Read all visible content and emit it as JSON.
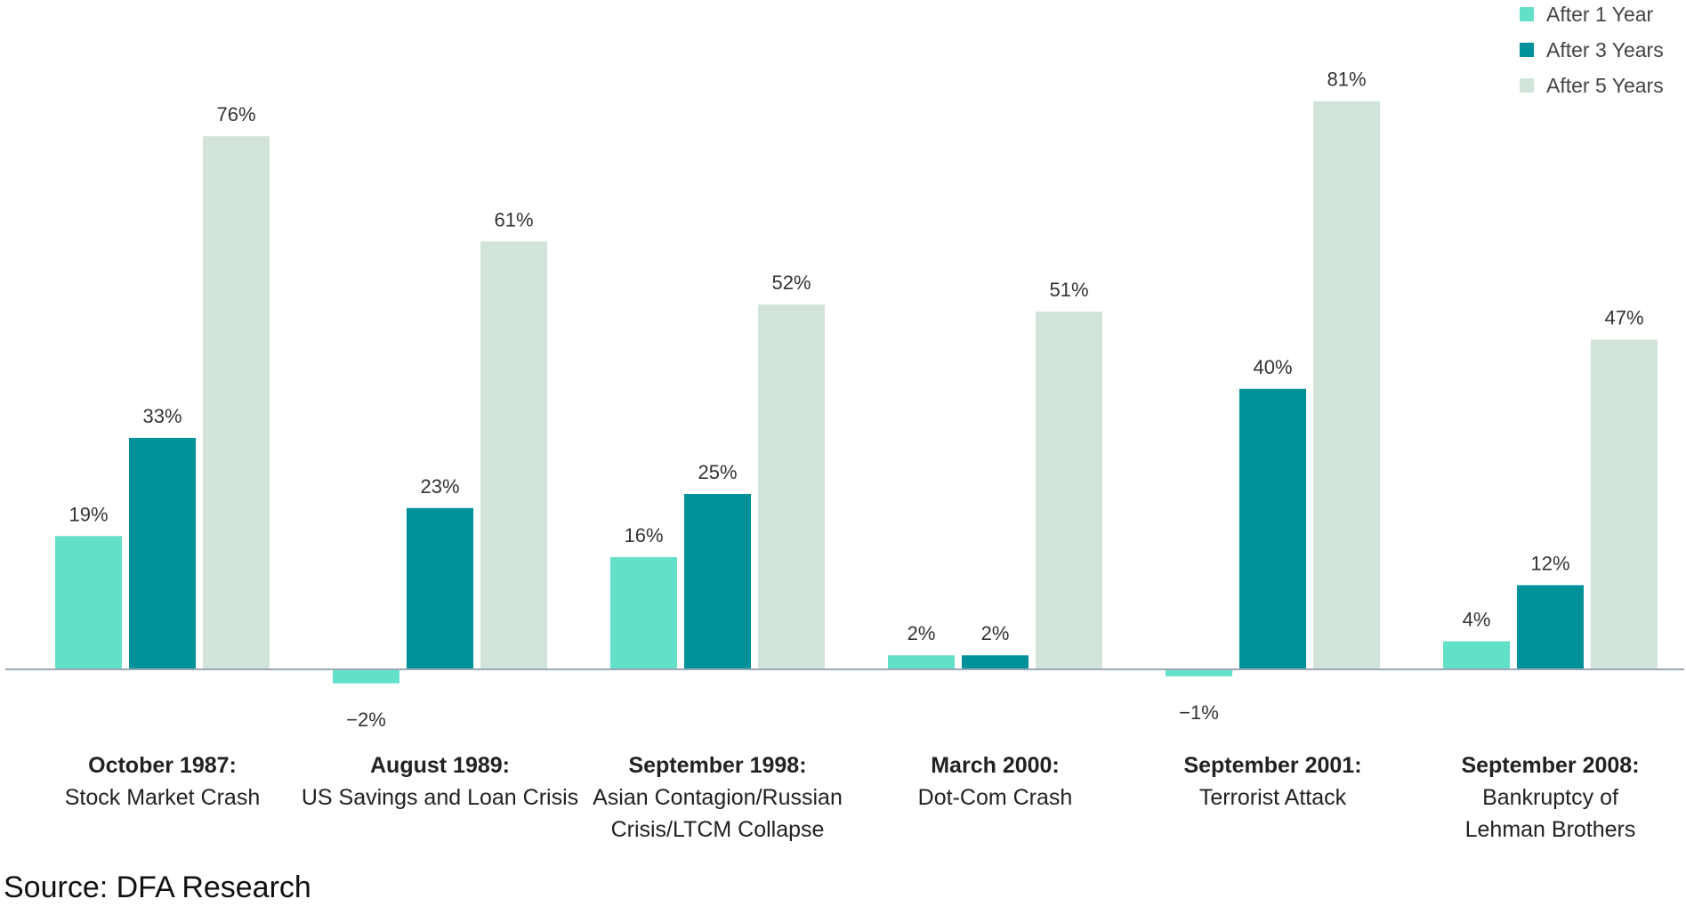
{
  "chart_data": {
    "type": "bar",
    "categories": [
      {
        "title": "October 1987:",
        "subtitle": [
          "Stock Market Crash"
        ]
      },
      {
        "title": "August 1989:",
        "subtitle": [
          "US Savings and Loan Crisis"
        ]
      },
      {
        "title": "September 1998:",
        "subtitle": [
          "Asian Contagion/Russian",
          "Crisis/LTCM Collapse"
        ]
      },
      {
        "title": "March 2000:",
        "subtitle": [
          "Dot-Com Crash"
        ]
      },
      {
        "title": "September 2001:",
        "subtitle": [
          "Terrorist Attack"
        ]
      },
      {
        "title": "September 2008:",
        "subtitle": [
          "Bankruptcy of",
          "Lehman Brothers"
        ]
      }
    ],
    "series": [
      {
        "name": "After 1 Year",
        "color": "#62e0c8",
        "values": [
          19,
          -2,
          16,
          2,
          -1,
          4
        ],
        "labels": [
          "19%",
          "−2%",
          "16%",
          "2%",
          "−1%",
          "4%"
        ]
      },
      {
        "name": "After 3 Years",
        "color": "#00919b",
        "values": [
          33,
          23,
          25,
          2,
          40,
          12
        ],
        "labels": [
          "33%",
          "23%",
          "25%",
          "2%",
          "40%",
          "12%"
        ]
      },
      {
        "name": "After 5 Years",
        "color": "#d2e3d9",
        "values": [
          76,
          61,
          52,
          51,
          81,
          47
        ],
        "labels": [
          "76%",
          "61%",
          "52%",
          "51%",
          "81%",
          "47%"
        ]
      }
    ],
    "ylim": [
      -5,
      85
    ],
    "grid": false,
    "legend_position": "top-right",
    "baseline_color": "#9aa8b8"
  },
  "source": "Source: DFA Research"
}
